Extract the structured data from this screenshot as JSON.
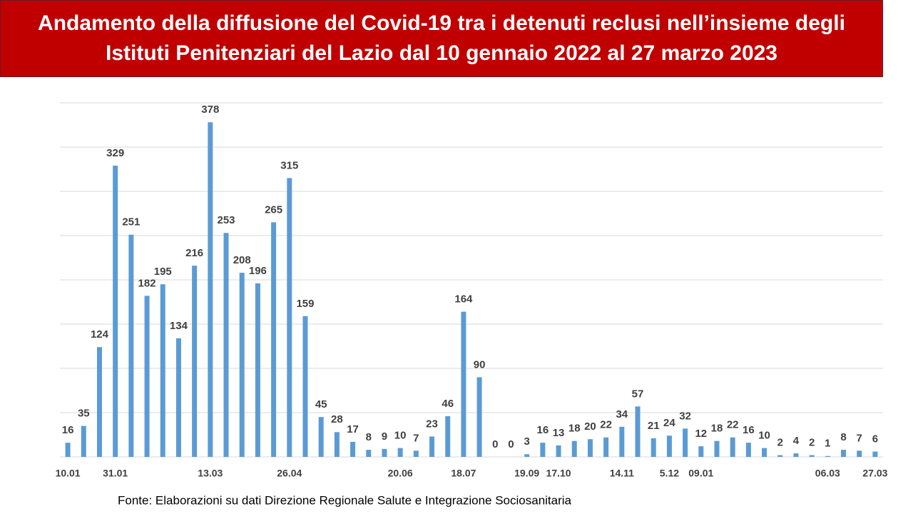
{
  "chart_data": {
    "type": "bar",
    "title": "Andamento della diffusione del Covid-19 tra i detenuti reclusi nell’insieme degli Istituti Penitenziari del Lazio dal 10 gennaio 2022 al 27 marzo 2023",
    "source": "Fonte: Elaborazioni su dati Direzione Regionale Salute e Integrazione Sociosanitaria",
    "categories": [
      "10.01",
      null,
      null,
      "31.01",
      null,
      null,
      null,
      null,
      null,
      "13.03",
      null,
      null,
      null,
      null,
      "26.04",
      null,
      null,
      null,
      null,
      null,
      null,
      "20.06",
      null,
      null,
      null,
      "18.07",
      null,
      null,
      null,
      "19.09",
      null,
      "17.10",
      null,
      null,
      null,
      "14.11",
      null,
      null,
      "5.12",
      null,
      "09.01",
      null,
      null,
      null,
      null,
      null,
      null,
      null,
      "06.03",
      null,
      null,
      "27.03"
    ],
    "values": [
      16,
      35,
      124,
      329,
      251,
      182,
      195,
      134,
      216,
      378,
      253,
      208,
      196,
      265,
      315,
      159,
      45,
      28,
      17,
      8,
      9,
      10,
      7,
      23,
      46,
      164,
      90,
      0,
      0,
      3,
      16,
      13,
      18,
      20,
      22,
      34,
      57,
      21,
      24,
      32,
      12,
      18,
      22,
      16,
      10,
      2,
      4,
      2,
      1,
      8,
      7,
      6
    ],
    "color": "#5b9bd5",
    "ylim": [
      0,
      400
    ],
    "yticks": [
      0,
      50,
      100,
      150,
      200,
      250,
      300,
      350,
      400
    ],
    "grid": true
  }
}
